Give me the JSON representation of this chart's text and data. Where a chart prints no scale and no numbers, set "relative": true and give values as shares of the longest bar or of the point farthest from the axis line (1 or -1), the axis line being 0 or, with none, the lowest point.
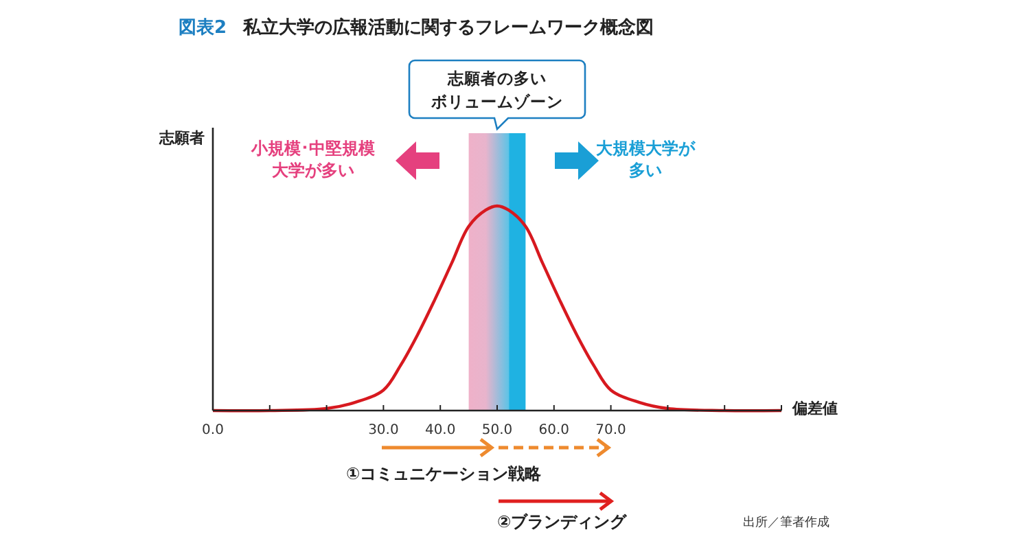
{
  "chart_data": {
    "type": "line",
    "title": "図表2　私立大学の広報活動に関するフレームワーク概念図",
    "xlabel": "偏差値",
    "ylabel": "志願者",
    "relative": true,
    "x": [
      0,
      10,
      20,
      25,
      30,
      33,
      36,
      39,
      42,
      45,
      48,
      50,
      52,
      55,
      58,
      61,
      64,
      67,
      70,
      75,
      80,
      90,
      100
    ],
    "series": [
      {
        "color": "#d7191f",
        "values": [
          0,
          0,
          0.01,
          0.04,
          0.1,
          0.22,
          0.37,
          0.54,
          0.72,
          0.9,
          0.98,
          1,
          0.98,
          0.9,
          0.72,
          0.54,
          0.37,
          0.22,
          0.1,
          0.04,
          0.01,
          0,
          0
        ]
      }
    ],
    "xlim": [
      0,
      100
    ],
    "xticks": [
      {
        "value": 0,
        "label": "0.0"
      },
      {
        "value": 10,
        "label": null
      },
      {
        "value": 20,
        "label": null
      },
      {
        "value": 30,
        "label": "30.0"
      },
      {
        "value": 40,
        "label": "40.0"
      },
      {
        "value": 50,
        "label": "50.0"
      },
      {
        "value": 60,
        "label": "60.0"
      },
      {
        "value": 70,
        "label": "70.0"
      },
      {
        "value": 80,
        "label": null
      },
      {
        "value": 90,
        "label": null
      },
      {
        "value": 100,
        "label": null
      }
    ],
    "bands": [
      {
        "axis": "x",
        "from": 45,
        "to": 55,
        "label": "志願者の多いボリュームゾーン"
      }
    ],
    "annotations": [
      "小規模･中堅規模大学が多い",
      "大規模大学が多い",
      "①コミュニケーション戦略",
      "②ブランディング",
      "出所／筆者作成"
    ],
    "grid": false
  }
}
